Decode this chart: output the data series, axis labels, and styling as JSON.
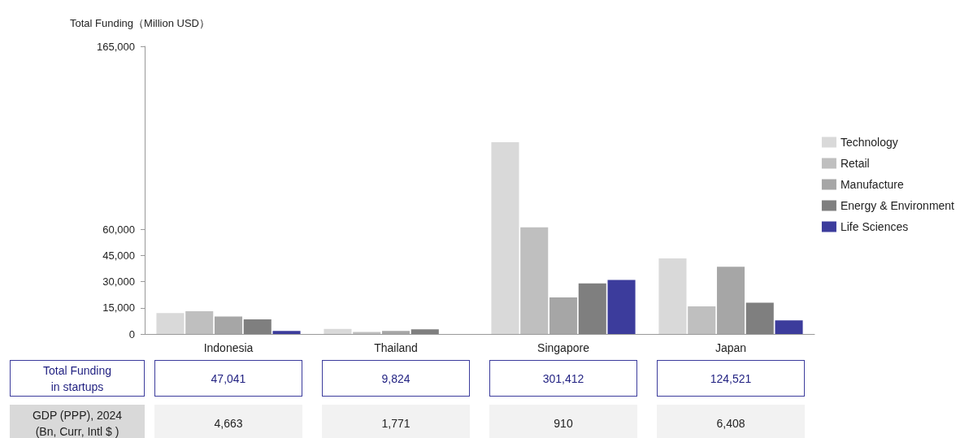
{
  "chart_data": {
    "type": "bar",
    "ylabel": "Total Funding（Million USD）",
    "categories": [
      "Indonesia",
      "Thailand",
      "Singapore",
      "Japan"
    ],
    "series": [
      {
        "name": "Technology",
        "color": "#d9d9d9",
        "values": [
          12000,
          2900,
          110000,
          43300
        ]
      },
      {
        "name": "Retail",
        "color": "#bfbfbf",
        "values": [
          13100,
          1200,
          61200,
          15900
        ]
      },
      {
        "name": "Manufacture",
        "color": "#a6a6a6",
        "values": [
          10000,
          1800,
          21000,
          38600
        ]
      },
      {
        "name": "Energy & Environment",
        "color": "#7f7f7f",
        "values": [
          8400,
          2700,
          29000,
          18000
        ]
      },
      {
        "name": "Life Sciences",
        "color": "#3c3c9c",
        "values": [
          1800,
          null,
          31000,
          7800
        ]
      }
    ],
    "ylim": [
      0,
      165000
    ],
    "yticks": [
      0,
      {
        "value": 15000,
        "label": "15,000"
      },
      {
        "value": 30000,
        "label": "30,000"
      },
      {
        "value": 45000,
        "label": "45,000"
      },
      {
        "value": 60000,
        "label": "60,000"
      },
      {
        "value": 165000,
        "label": "165,000"
      }
    ],
    "grid": false,
    "legend": "right",
    "annotations": [
      "Total Funding\nin startups",
      "47,041",
      "9,824",
      "301,412",
      "124,521",
      "GDP (PPP), 2024\n(Bn, Curr, Intl $ )",
      "4,663",
      "1,771",
      "910",
      "6,408"
    ]
  }
}
